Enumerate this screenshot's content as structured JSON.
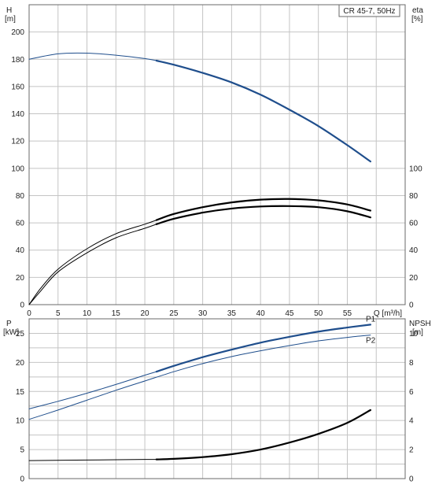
{
  "title_box": "CR 45-7, 50Hz",
  "chart_data": [
    {
      "type": "line",
      "panel": "top",
      "y_left_label": [
        "H",
        "[m]"
      ],
      "y_right_label": [
        "eta",
        "[%]"
      ],
      "xlabel": "Q [m³/h]",
      "xlim": [
        0,
        65
      ],
      "x_ticks": [
        0,
        5,
        10,
        15,
        20,
        25,
        30,
        35,
        40,
        45,
        50,
        55
      ],
      "x_tick_labels": [
        "0",
        "5",
        "10",
        "15",
        "20",
        "25",
        "30",
        "35",
        "40",
        "45",
        "50",
        "55"
      ],
      "x_unit_label": "Q [m³/h]",
      "ylim": [
        0,
        220
      ],
      "y_left_ticks": [
        0,
        20,
        40,
        60,
        80,
        100,
        120,
        140,
        160,
        180,
        200
      ],
      "y_right_ticks": [
        0,
        20,
        40,
        60,
        80,
        100
      ],
      "grid": true,
      "series": [
        {
          "key": "H_thin",
          "color": "#1f4e8c",
          "x": [
            0,
            5,
            10,
            15,
            20,
            22
          ],
          "y": [
            180,
            184,
            184.5,
            183,
            180.5,
            179
          ]
        },
        {
          "key": "H_bold",
          "color": "#1f4e8c",
          "x": [
            22,
            25,
            30,
            35,
            40,
            45,
            50,
            55,
            59
          ],
          "y": [
            179,
            176,
            170,
            163,
            154,
            143,
            131,
            117,
            105
          ]
        },
        {
          "key": "eta_a_thin",
          "color": "#000000",
          "x": [
            0,
            2,
            5,
            10,
            15,
            20,
            22
          ],
          "y": [
            0,
            12,
            26,
            41,
            52,
            59,
            62
          ]
        },
        {
          "key": "eta_a_bold",
          "color": "#000000",
          "x": [
            22,
            25,
            30,
            35,
            40,
            45,
            50,
            55,
            59
          ],
          "y": [
            62,
            66.5,
            71.5,
            75,
            77,
            77.5,
            76.5,
            73.5,
            69
          ]
        },
        {
          "key": "eta_b_thin",
          "color": "#000000",
          "x": [
            0,
            2,
            5,
            10,
            15,
            20,
            22
          ],
          "y": [
            0,
            10,
            24,
            38,
            49,
            56,
            59
          ]
        },
        {
          "key": "eta_b_bold",
          "color": "#000000",
          "x": [
            22,
            25,
            30,
            35,
            40,
            45,
            50,
            55,
            59
          ],
          "y": [
            59,
            63,
            67.5,
            70.5,
            72,
            72.3,
            71.5,
            68.5,
            64
          ]
        }
      ]
    },
    {
      "type": "line",
      "panel": "bottom",
      "y_left_label": [
        "P",
        "[kW]"
      ],
      "y_right_label": [
        "NPSH",
        "[m]"
      ],
      "xlim": [
        0,
        65
      ],
      "ylim": [
        0,
        27.5
      ],
      "y_left_ticks": [
        0,
        5,
        10,
        15,
        20,
        25
      ],
      "y_right_ticks": [
        0,
        2,
        4,
        6,
        8,
        10
      ],
      "y_right_scale": 2.5,
      "grid": true,
      "series": [
        {
          "key": "P1_thin",
          "name": "P1",
          "color": "#1f4e8c",
          "x": [
            0,
            5,
            10,
            15,
            20,
            22
          ],
          "y": [
            12,
            13.3,
            14.7,
            16.2,
            17.8,
            18.4
          ]
        },
        {
          "key": "P1_bold",
          "name": "P1",
          "color": "#1f4e8c",
          "x": [
            22,
            25,
            30,
            35,
            40,
            45,
            50,
            55,
            59
          ],
          "y": [
            18.4,
            19.4,
            20.9,
            22.2,
            23.4,
            24.4,
            25.3,
            26.0,
            26.5
          ]
        },
        {
          "key": "P2_thin",
          "name": "P2",
          "color": "#1f4e8c",
          "x": [
            0,
            5,
            10,
            15,
            20,
            25,
            30,
            35,
            40,
            45,
            50,
            55,
            59
          ],
          "y": [
            10.2,
            11.8,
            13.5,
            15.2,
            16.8,
            18.4,
            19.8,
            21.0,
            22.0,
            22.9,
            23.7,
            24.3,
            24.7
          ]
        },
        {
          "key": "NPSH_thin",
          "color": "#000000",
          "x": [
            0,
            10,
            20,
            22
          ],
          "y": [
            3.1,
            3.2,
            3.3,
            3.3
          ]
        },
        {
          "key": "NPSH_bold",
          "color": "#000000",
          "x": [
            22,
            25,
            30,
            35,
            40,
            45,
            50,
            55,
            59
          ],
          "y": [
            3.3,
            3.4,
            3.7,
            4.2,
            5.0,
            6.2,
            7.7,
            9.6,
            11.8
          ]
        }
      ],
      "labels": [
        "P1",
        "P2"
      ]
    }
  ]
}
